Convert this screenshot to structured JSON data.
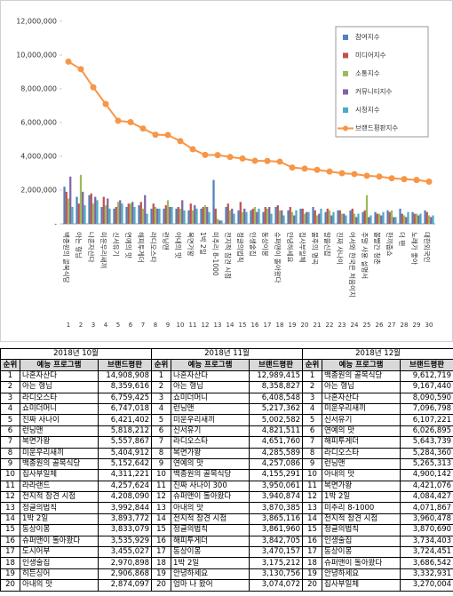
{
  "chart_data": {
    "type": "bar_line",
    "categories": [
      "백종원의 골목식당",
      "아는 형님",
      "나혼자산다",
      "미운우리새끼",
      "신서유기",
      "연예의 맛",
      "해피투게더",
      "라디오스타",
      "런닝맨",
      "아내의 맛",
      "복면가왕",
      "1박 2일",
      "미추리 8-1000",
      "전지적 참견 시점",
      "정글의법칙",
      "인생술집",
      "동상이몽",
      "슈퍼맨이 돌아왔다",
      "안녕하세요",
      "집사부일체",
      "불후의 명곡",
      "알쓸신잡",
      "진짜 사나이",
      "어서와 한국은 처음이지",
      "주말 사용 설명서",
      "볼빨간 청춘",
      "한끼줍쇼",
      "더 팬",
      "노래가 좋아",
      "대한외국인"
    ],
    "category_numbers": [
      1,
      2,
      3,
      4,
      5,
      6,
      7,
      8,
      9,
      10,
      11,
      12,
      13,
      14,
      15,
      16,
      17,
      18,
      19,
      20,
      21,
      22,
      23,
      24,
      25,
      26,
      27,
      28,
      29,
      30
    ],
    "series": [
      {
        "name": "참여지수",
        "color": "#4f81bd",
        "kind": "bar",
        "values": [
          2200000,
          1600000,
          1700000,
          1000000,
          900000,
          1000000,
          1100000,
          900000,
          900000,
          900000,
          800000,
          900000,
          2600000,
          1000000,
          800000,
          800000,
          700000,
          1000000,
          800000,
          900000,
          1000000,
          700000,
          800000,
          800000,
          700000,
          700000,
          800000,
          900000,
          700000,
          800000
        ]
      },
      {
        "name": "미디어지수",
        "color": "#c0504d",
        "kind": "bar",
        "values": [
          1900000,
          1200000,
          1800000,
          1600000,
          1000000,
          1200000,
          1300000,
          1200000,
          1100000,
          1000000,
          1200000,
          1000000,
          900000,
          1200000,
          1300000,
          900000,
          1000000,
          1100000,
          1000000,
          900000,
          800000,
          900000,
          800000,
          900000,
          800000,
          600000,
          700000,
          600000,
          600000,
          700000
        ]
      },
      {
        "name": "소통지수",
        "color": "#9bbb59",
        "kind": "bar",
        "values": [
          1500000,
          2900000,
          1200000,
          1100000,
          1300000,
          1200000,
          900000,
          1000000,
          1400000,
          900000,
          800000,
          1100000,
          300000,
          800000,
          700000,
          1000000,
          900000,
          800000,
          700000,
          600000,
          500000,
          800000,
          600000,
          600000,
          1700000,
          600000,
          800000,
          500000,
          600000,
          500000
        ]
      },
      {
        "name": "커뮤니티지수",
        "color": "#8064a2",
        "kind": "bar",
        "values": [
          2800000,
          1900000,
          1600000,
          1500000,
          1400000,
          1300000,
          1700000,
          900000,
          1000000,
          1400000,
          1100000,
          1000000,
          200000,
          900000,
          900000,
          700000,
          1000000,
          800000,
          500000,
          700000,
          600000,
          500000,
          600000,
          400000,
          400000,
          500000,
          400000,
          400000,
          500000,
          400000
        ]
      },
      {
        "name": "시청지수",
        "color": "#4bacc6",
        "kind": "bar",
        "values": [
          1000000,
          1100000,
          1400000,
          900000,
          1200000,
          1000000,
          600000,
          900000,
          1000000,
          800000,
          900000,
          700000,
          200000,
          600000,
          700000,
          900000,
          600000,
          500000,
          800000,
          700000,
          900000,
          700000,
          500000,
          600000,
          500000,
          700000,
          400000,
          700000,
          600000,
          500000
        ]
      },
      {
        "name": "브랜드평판지수",
        "color": "#f79646",
        "kind": "line",
        "values": [
          9612719,
          9167440,
          8090590,
          7096798,
          6107221,
          6026895,
          5643739,
          5284360,
          5265313,
          4900142,
          4421076,
          4084427,
          4071867,
          3960478,
          3870690,
          3734403,
          3724451,
          3686542,
          3332931,
          3270004,
          3200000,
          3100000,
          3000000,
          2950000,
          2850000,
          2800000,
          2700000,
          2650000,
          2600000,
          2500000
        ]
      }
    ],
    "ylim": [
      0,
      12000000
    ],
    "yticks": [
      {
        "value": 0,
        "label": "-"
      },
      {
        "value": 2000000,
        "label": "2,000,000"
      },
      {
        "value": 4000000,
        "label": "4,000,000"
      },
      {
        "value": 6000000,
        "label": "6,000,000"
      },
      {
        "value": 8000000,
        "label": "8,000,000"
      },
      {
        "value": 10000000,
        "label": "10,000,000"
      },
      {
        "value": 12000000,
        "label": "12,000,000"
      }
    ],
    "grid": false,
    "legend": "upper right"
  },
  "table": {
    "headers": [
      "순위",
      "예능 프로그램",
      "브랜드평판"
    ],
    "months": [
      {
        "title": "2018년 10월",
        "rows": [
          [
            1,
            "나혼자산다",
            "14,908,908"
          ],
          [
            2,
            "아는 형님",
            "8,359,616"
          ],
          [
            3,
            "라디오스타",
            "6,759,425"
          ],
          [
            4,
            "쇼미더머니",
            "6,747,018"
          ],
          [
            5,
            "진짜 사나이",
            "6,421,402"
          ],
          [
            6,
            "런닝맨",
            "5,818,212"
          ],
          [
            7,
            "복면가왕",
            "5,557,867"
          ],
          [
            8,
            "미운우리새끼",
            "5,404,912"
          ],
          [
            9,
            "백종원의 골목식당",
            "5,152,642"
          ],
          [
            10,
            "집사부일체",
            "4,311,221"
          ],
          [
            11,
            "라라랜드",
            "4,257,624"
          ],
          [
            12,
            "전지적 참견 시점",
            "4,208,090"
          ],
          [
            13,
            "정글의법칙",
            "3,992,844"
          ],
          [
            14,
            "1박 2일",
            "3,893,772"
          ],
          [
            15,
            "동상이몽",
            "3,833,079"
          ],
          [
            16,
            "슈퍼맨이 돌아왔다",
            "3,535,929"
          ],
          [
            17,
            "도시어부",
            "3,455,027"
          ],
          [
            18,
            "인생술집",
            "2,970,898"
          ],
          [
            19,
            "히든싱어",
            "2,906,868"
          ],
          [
            20,
            "아내의 맛",
            "2,874,097"
          ]
        ]
      },
      {
        "title": "2018년 11월",
        "rows": [
          [
            1,
            "나혼자산다",
            "12,989,415"
          ],
          [
            2,
            "아는 형님",
            "8,358,827"
          ],
          [
            3,
            "쇼미더머니",
            "6,408,548"
          ],
          [
            4,
            "런닝맨",
            "5,217,362"
          ],
          [
            5,
            "미운우리새끼",
            "5,002,582"
          ],
          [
            6,
            "신서유기",
            "4,821,511"
          ],
          [
            7,
            "라디오스타",
            "4,651,760"
          ],
          [
            8,
            "복면가왕",
            "4,285,589"
          ],
          [
            9,
            "연예의 맛",
            "4,257,086"
          ],
          [
            10,
            "백종원의 골목식당",
            "4,155,291"
          ],
          [
            11,
            "진짜 사나이 300",
            "3,950,061"
          ],
          [
            12,
            "슈퍼맨이 돌아왔다",
            "3,940,874"
          ],
          [
            13,
            "아내의 맛",
            "3,870,385"
          ],
          [
            14,
            "전지적 참견 시점",
            "3,865,116"
          ],
          [
            15,
            "정글의법칙",
            "3,861,960"
          ],
          [
            16,
            "해피투게더",
            "3,842,705"
          ],
          [
            17,
            "동상이몽",
            "3,470,157"
          ],
          [
            18,
            "1박 2일",
            "3,175,212"
          ],
          [
            19,
            "안녕하세요",
            "3,130,756"
          ],
          [
            20,
            "엄마 나 왔어",
            "3,074,072"
          ]
        ]
      },
      {
        "title": "2018년 12월",
        "rows": [
          [
            1,
            "백종원의 골목식당",
            "9,612,719"
          ],
          [
            2,
            "아는 형님",
            "9,167,440"
          ],
          [
            3,
            "나혼자산다",
            "8,090,590"
          ],
          [
            4,
            "미운우리새끼",
            "7,096,798"
          ],
          [
            5,
            "신서유기",
            "6,107,221"
          ],
          [
            6,
            "연예의 맛",
            "6,026,895"
          ],
          [
            7,
            "해피투게더",
            "5,643,739"
          ],
          [
            8,
            "라디오스타",
            "5,284,360"
          ],
          [
            9,
            "런닝맨",
            "5,265,313"
          ],
          [
            10,
            "아내의 맛",
            "4,900,142"
          ],
          [
            11,
            "복면가왕",
            "4,421,076"
          ],
          [
            12,
            "1박 2일",
            "4,084,427"
          ],
          [
            13,
            "미추리 8-1000",
            "4,071,867"
          ],
          [
            14,
            "전지적 참견 시점",
            "3,960,478"
          ],
          [
            15,
            "정글의법칙",
            "3,870,690"
          ],
          [
            16,
            "인생술집",
            "3,734,403"
          ],
          [
            17,
            "동상이몽",
            "3,724,451"
          ],
          [
            18,
            "슈퍼맨이 돌아왔다",
            "3,686,542"
          ],
          [
            19,
            "안녕하세요",
            "3,332,931"
          ],
          [
            20,
            "집사부일체",
            "3,270,004"
          ]
        ]
      }
    ]
  }
}
